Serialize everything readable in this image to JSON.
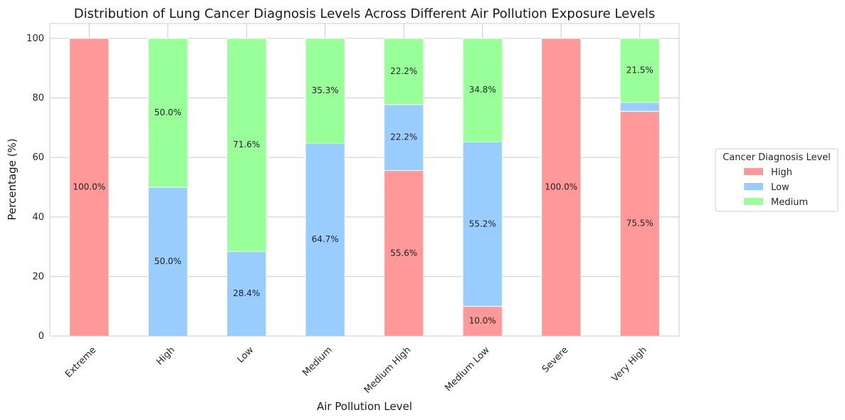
{
  "chart_data": {
    "type": "bar",
    "stacked": true,
    "title": "Distribution of Lung Cancer Diagnosis Levels Across Different Air Pollution Exposure Levels",
    "xlabel": "Air Pollution Level",
    "ylabel": "Percentage (%)",
    "ylim": [
      0,
      105
    ],
    "yticks": [
      0,
      20,
      40,
      60,
      80,
      100
    ],
    "grid": true,
    "legend_position": "right",
    "legend_title": "Cancer Diagnosis Level",
    "categories": [
      "Extreme",
      "High",
      "Low",
      "Medium",
      "Medium High",
      "Medium Low",
      "Severe",
      "Very High"
    ],
    "series": [
      {
        "name": "High",
        "color": "#ff9999",
        "values": [
          100.0,
          0,
          0,
          0,
          55.6,
          10.0,
          100.0,
          75.5
        ],
        "labels": [
          "100.0%",
          "",
          "",
          "",
          "55.6%",
          "10.0%",
          "100.0%",
          "75.5%"
        ]
      },
      {
        "name": "Low",
        "color": "#99ccff",
        "values": [
          0,
          50.0,
          28.4,
          64.7,
          22.2,
          55.2,
          0,
          3.0
        ],
        "labels": [
          "",
          "50.0%",
          "28.4%",
          "64.7%",
          "22.2%",
          "55.2%",
          "",
          ""
        ]
      },
      {
        "name": "Medium",
        "color": "#99ff99",
        "values": [
          0,
          50.0,
          71.6,
          35.3,
          22.2,
          34.8,
          0,
          21.5
        ],
        "labels": [
          "",
          "50.0%",
          "71.6%",
          "35.3%",
          "22.2%",
          "34.8%",
          "",
          "21.5%"
        ]
      }
    ]
  }
}
